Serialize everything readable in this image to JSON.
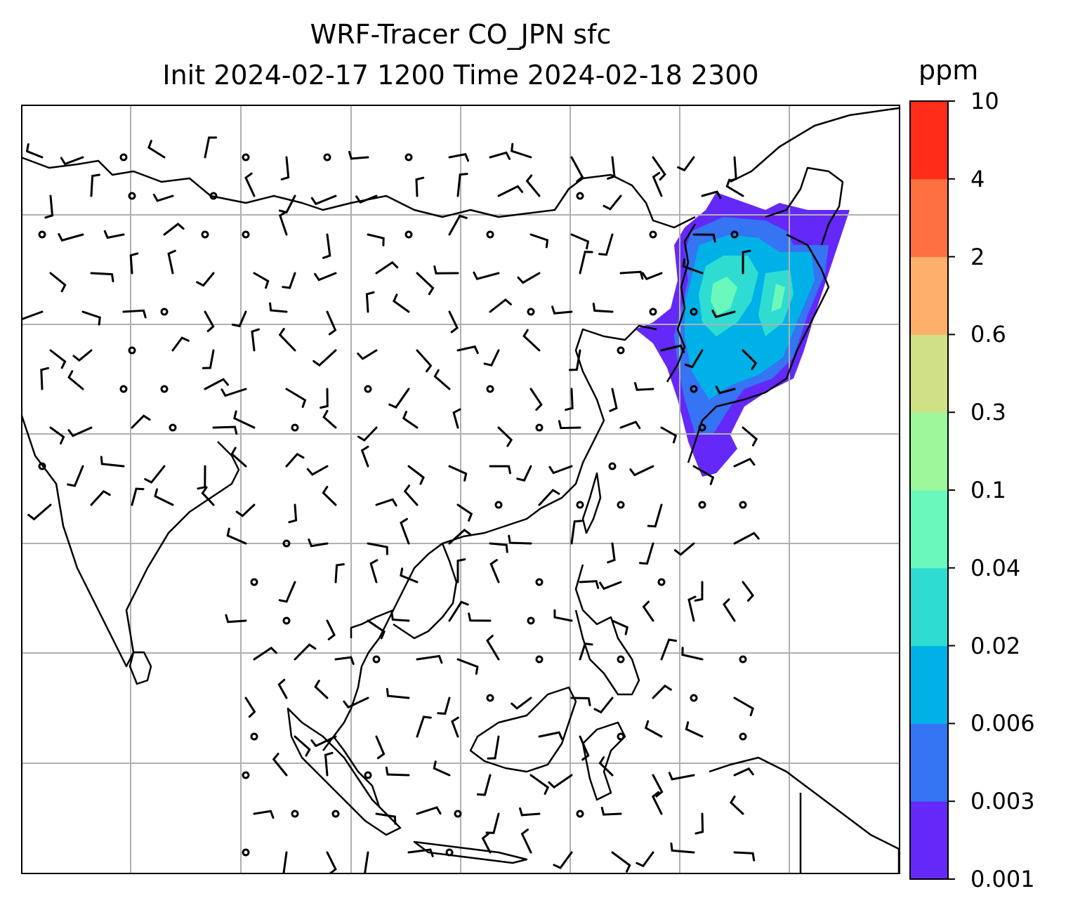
{
  "title": {
    "line1": "WRF-Tracer CO_JPN sfc",
    "line2": "Init 2024-02-17 1200 Time 2024-02-18 2300"
  },
  "colorbar": {
    "unit": "ppm",
    "levels": [
      "0.001",
      "0.003",
      "0.006",
      "0.02",
      "0.04",
      "0.1",
      "0.3",
      "0.6",
      "2",
      "4",
      "10"
    ],
    "colors": [
      "#6428f8",
      "#3574f2",
      "#00b1e8",
      "#2fdcd2",
      "#6af8bc",
      "#9cf89a",
      "#d0e085",
      "#feb06a",
      "#ff7040",
      "#ff2c1a"
    ]
  },
  "map": {
    "gridlines": true,
    "tracer_colors": {
      "outer": "#6428f8",
      "mid": "#3574f2",
      "core": "#00b1e8",
      "high": "#2fdcd2",
      "peak": "#6af8bc"
    }
  }
}
